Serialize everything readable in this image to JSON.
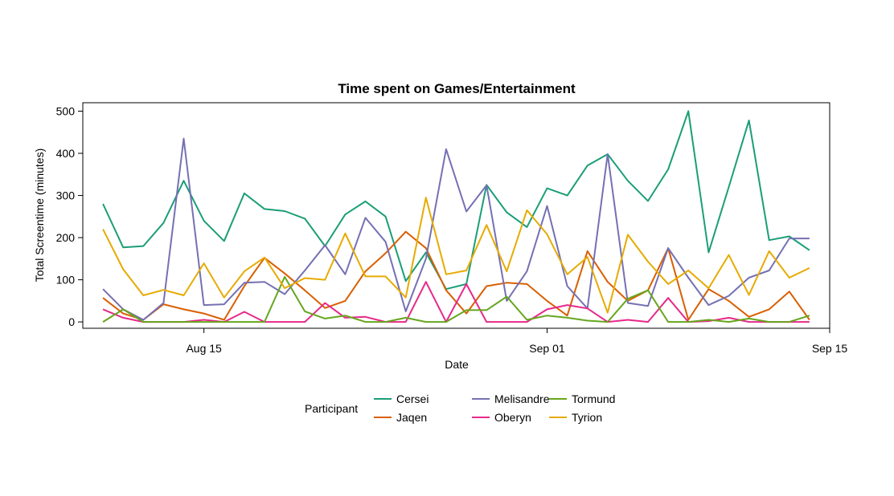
{
  "chart_data": {
    "type": "line",
    "title": "Time spent on Games/Entertainment",
    "xlabel": "Date",
    "ylabel": "Total Screentime (minutes)",
    "x_axis": {
      "type": "date",
      "range": [
        "2022-08-09",
        "2022-09-15"
      ],
      "ticks": [
        {
          "date": "2022-08-15",
          "label": "Aug 15"
        },
        {
          "date": "2022-09-01",
          "label": "Sep 01"
        },
        {
          "date": "2022-09-15",
          "label": "Sep 15"
        }
      ]
    },
    "y_axis": {
      "range": [
        -15,
        520
      ],
      "ticks": [
        0,
        100,
        200,
        300,
        400,
        500
      ]
    },
    "grid": false,
    "legend": {
      "title": "Participant",
      "position": "bottom"
    },
    "x": [
      "2022-08-10",
      "2022-08-11",
      "2022-08-12",
      "2022-08-13",
      "2022-08-14",
      "2022-08-15",
      "2022-08-16",
      "2022-08-17",
      "2022-08-18",
      "2022-08-19",
      "2022-08-20",
      "2022-08-21",
      "2022-08-22",
      "2022-08-23",
      "2022-08-24",
      "2022-08-25",
      "2022-08-26",
      "2022-08-27",
      "2022-08-28",
      "2022-08-29",
      "2022-08-30",
      "2022-08-31",
      "2022-09-01",
      "2022-09-02",
      "2022-09-03",
      "2022-09-04",
      "2022-09-05",
      "2022-09-06",
      "2022-09-07",
      "2022-09-08",
      "2022-09-09",
      "2022-09-10",
      "2022-09-11",
      "2022-09-12",
      "2022-09-13",
      "2022-09-14"
    ],
    "series": [
      {
        "name": "Cersei",
        "color": "#1b9e77",
        "values": [
          280,
          177,
          180,
          235,
          335,
          240,
          192,
          305,
          268,
          263,
          245,
          180,
          255,
          286,
          250,
          97,
          165,
          78,
          90,
          325,
          260,
          225,
          317,
          300,
          371,
          398,
          335,
          287,
          362,
          500,
          165,
          320,
          478,
          194,
          203,
          170
        ]
      },
      {
        "name": "Jaqen",
        "color": "#d95f02",
        "values": [
          57,
          20,
          5,
          42,
          30,
          20,
          5,
          85,
          152,
          115,
          75,
          33,
          50,
          120,
          163,
          214,
          175,
          75,
          20,
          85,
          93,
          90,
          50,
          15,
          168,
          95,
          50,
          75,
          175,
          5,
          78,
          50,
          12,
          30,
          72,
          5
        ]
      },
      {
        "name": "Melisandre",
        "color": "#7570b3",
        "values": [
          78,
          30,
          5,
          45,
          435,
          40,
          42,
          93,
          95,
          66,
          122,
          182,
          113,
          247,
          190,
          25,
          150,
          410,
          262,
          324,
          50,
          120,
          275,
          85,
          32,
          398,
          45,
          38,
          175,
          105,
          40,
          62,
          105,
          122,
          198,
          198
        ]
      },
      {
        "name": "Oberyn",
        "color": "#e7298a",
        "values": [
          30,
          10,
          0,
          0,
          0,
          5,
          0,
          24,
          0,
          0,
          0,
          45,
          10,
          12,
          0,
          0,
          95,
          0,
          90,
          0,
          0,
          0,
          30,
          40,
          32,
          0,
          5,
          0,
          57,
          0,
          2,
          10,
          0,
          0,
          0,
          0
        ]
      },
      {
        "name": "Tormund",
        "color": "#66a61e",
        "values": [
          0,
          30,
          0,
          0,
          0,
          0,
          0,
          0,
          0,
          107,
          25,
          8,
          15,
          0,
          0,
          10,
          0,
          0,
          28,
          28,
          60,
          5,
          15,
          10,
          3,
          0,
          55,
          75,
          0,
          0,
          5,
          0,
          8,
          0,
          0,
          15
        ]
      },
      {
        "name": "Tyrion",
        "color": "#e6ab02",
        "values": [
          220,
          125,
          63,
          76,
          63,
          139,
          58,
          120,
          153,
          80,
          104,
          100,
          210,
          108,
          108,
          58,
          295,
          113,
          122,
          230,
          120,
          265,
          208,
          113,
          154,
          22,
          207,
          143,
          90,
          122,
          80,
          159,
          64,
          168,
          105,
          128
        ]
      }
    ]
  }
}
